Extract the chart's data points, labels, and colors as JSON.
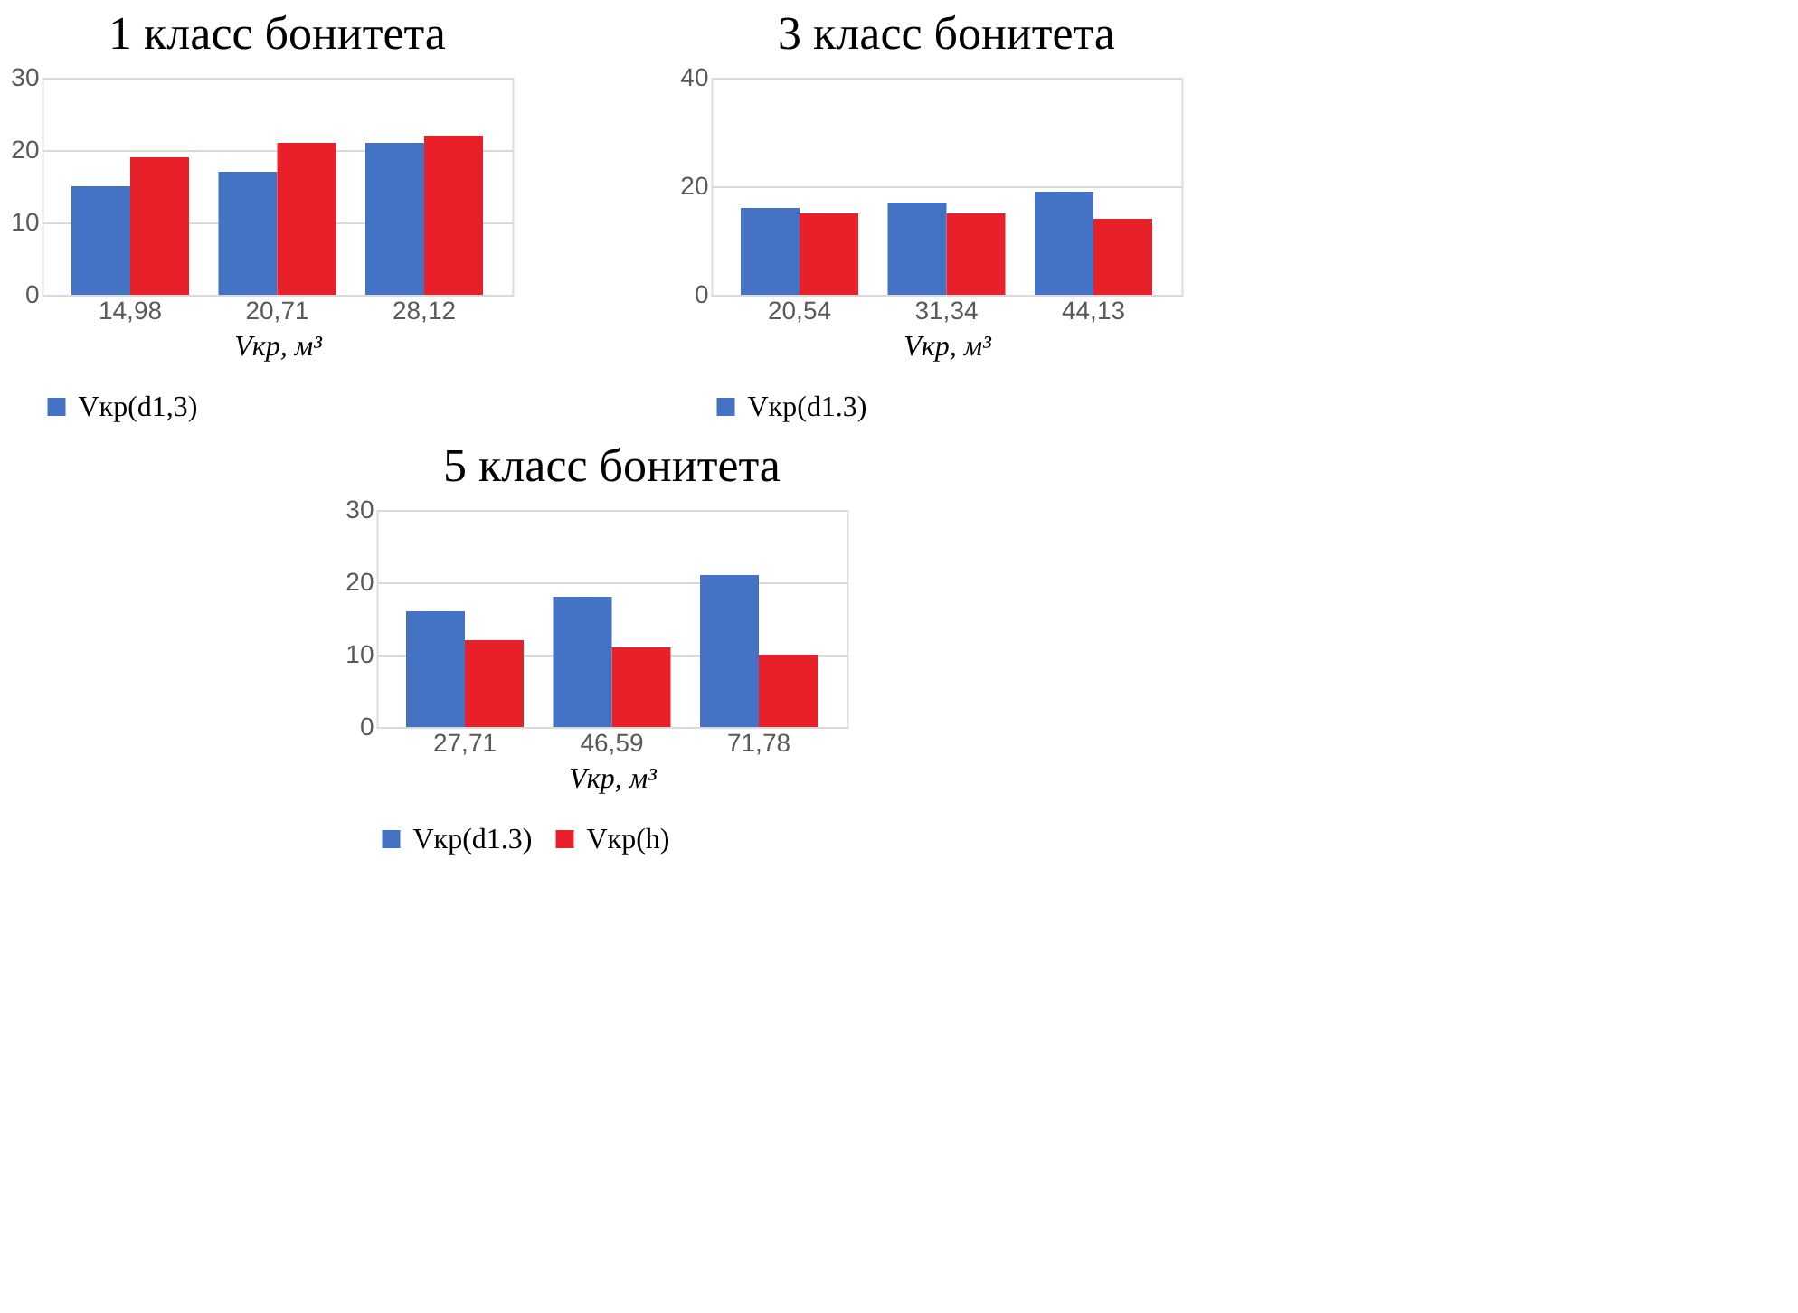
{
  "chart_data": [
    {
      "type": "bar",
      "title": "1 класс бонитета",
      "xlabel": "Vкр, м³",
      "categories": [
        "14,98",
        "20,71",
        "28,12"
      ],
      "ylim": [
        0,
        30
      ],
      "yticks": [
        0,
        10,
        20,
        30
      ],
      "grid": "y",
      "legend": "bottom",
      "series": [
        {
          "name": "Vкр(d1,3)",
          "color": "#4472c4",
          "values": [
            15,
            17,
            21
          ]
        },
        {
          "color": "#e8202a",
          "values": [
            19,
            21,
            22
          ]
        }
      ]
    },
    {
      "type": "bar",
      "title": "3 класс бонитета",
      "xlabel": "Vкр, м³",
      "categories": [
        "20,54",
        "31,34",
        "44,13"
      ],
      "ylim": [
        0,
        40
      ],
      "yticks": [
        0,
        20,
        40
      ],
      "grid": "y",
      "legend": "bottom",
      "series": [
        {
          "name": "Vкр(d1.3)",
          "color": "#4472c4",
          "values": [
            16,
            17,
            19
          ]
        },
        {
          "color": "#e8202a",
          "values": [
            15,
            15,
            14
          ]
        }
      ]
    },
    {
      "type": "bar",
      "title": "5 класс бонитета",
      "xlabel": "Vкр, м³",
      "categories": [
        "27,71",
        "46,59",
        "71,78"
      ],
      "ylim": [
        0,
        30
      ],
      "yticks": [
        0,
        10,
        20,
        30
      ],
      "grid": "y",
      "legend": "bottom",
      "series": [
        {
          "name": "Vкр(d1.3)",
          "color": "#4472c4",
          "values": [
            16,
            18,
            21
          ]
        },
        {
          "name": "Vкр(h)",
          "color": "#e8202a",
          "values": [
            12,
            11,
            10
          ]
        }
      ]
    }
  ]
}
